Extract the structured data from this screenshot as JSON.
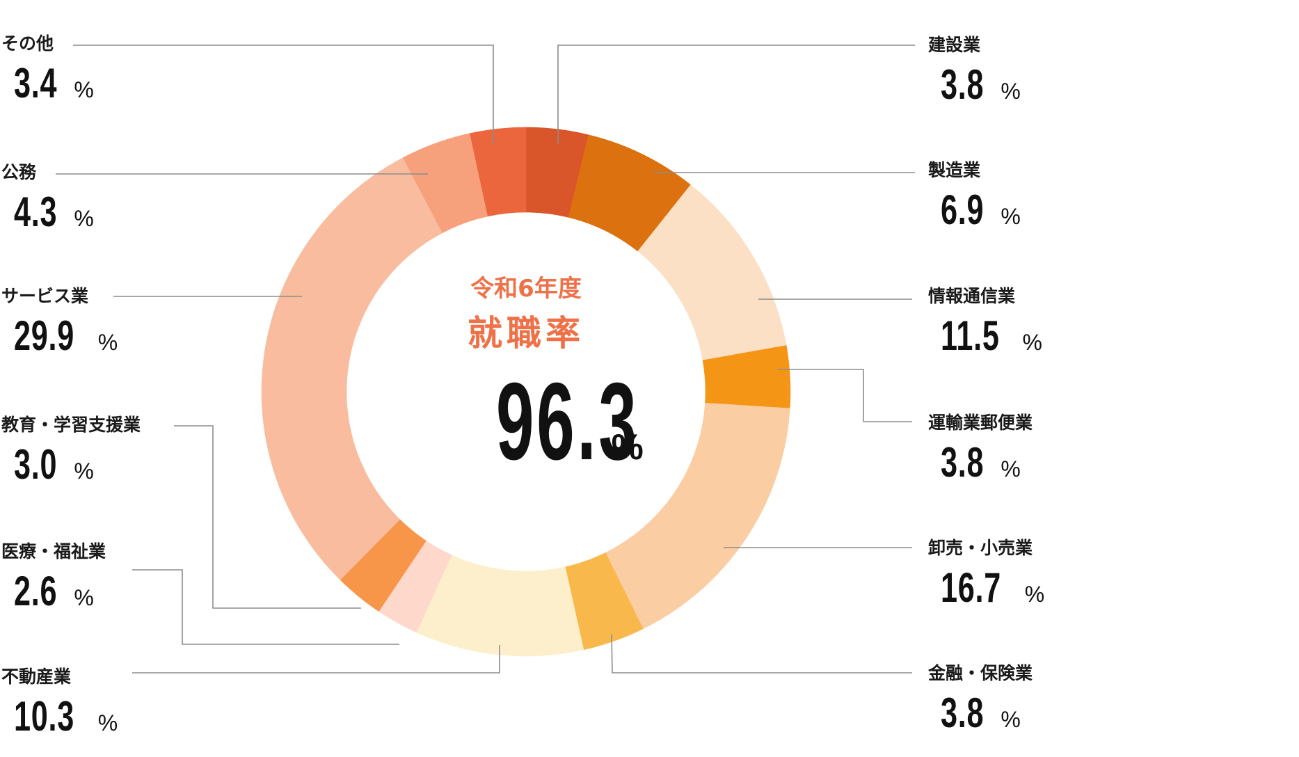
{
  "chart_data": {
    "type": "pie",
    "variant": "donut",
    "title": "令和6年度 就職率",
    "center": {
      "year_label": "令和6年度",
      "title": "就職率",
      "value": "96.3",
      "unit": "%"
    },
    "categories": [
      "建設業",
      "製造業",
      "情報通信業",
      "運輸業郵便業",
      "卸売・小売業",
      "金融・保険業",
      "不動産業",
      "医療・福祉業",
      "教育・学習支援業",
      "サービス業",
      "公務",
      "その他"
    ],
    "values": [
      3.8,
      6.9,
      11.5,
      3.8,
      16.7,
      3.8,
      10.3,
      2.6,
      3.0,
      29.9,
      4.3,
      3.4
    ],
    "unit": "%",
    "colors": [
      "#D9552A",
      "#DB720F",
      "#FCE0C5",
      "#F59516",
      "#FACDA3",
      "#F9B84B",
      "#FDEFCB",
      "#FDD8CB",
      "#F79549",
      "#F9BC9E",
      "#F7A07C",
      "#EB663C"
    ],
    "start_angle_deg": 0,
    "direction": "clockwise",
    "legend_position": "callouts-left-and-right"
  },
  "labels": [
    {
      "name": "建設業",
      "value": "3.8",
      "unit": "%"
    },
    {
      "name": "製造業",
      "value": "6.9",
      "unit": "%"
    },
    {
      "name": "情報通信業",
      "value": "11.5",
      "unit": "%"
    },
    {
      "name": "運輸業郵便業",
      "value": "3.8",
      "unit": "%"
    },
    {
      "name": "卸売・小売業",
      "value": "16.7",
      "unit": "%"
    },
    {
      "name": "金融・保険業",
      "value": "3.8",
      "unit": "%"
    },
    {
      "name": "不動産業",
      "value": "10.3",
      "unit": "%"
    },
    {
      "name": "医療・福祉業",
      "value": "2.6",
      "unit": "%"
    },
    {
      "name": "教育・学習支援業",
      "value": "3.0",
      "unit": "%"
    },
    {
      "name": "サービス業",
      "value": "29.9",
      "unit": "%"
    },
    {
      "name": "公務",
      "value": "4.3",
      "unit": "%"
    },
    {
      "name": "その他",
      "value": "3.4",
      "unit": "%"
    }
  ],
  "colors": {
    "accent": "#EE7148",
    "leader_line": "#8c8c8c",
    "text": "#111111"
  }
}
